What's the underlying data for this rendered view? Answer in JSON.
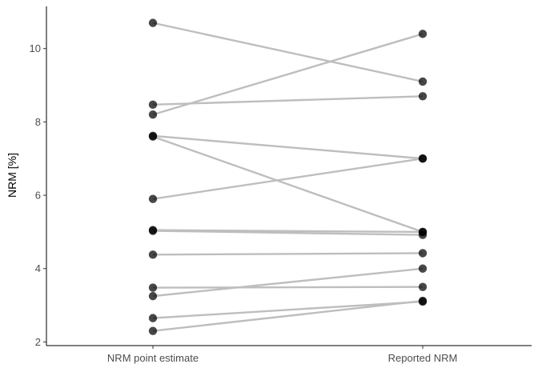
{
  "chart_data": {
    "type": "scatter",
    "subtype": "paired-dot-slope",
    "title": "",
    "xlabel": "",
    "ylabel": "NRM [%]",
    "categories": [
      "NRM point estimate",
      "Reported NRM"
    ],
    "ylim": [
      1.9,
      11.15
    ],
    "yticks": [
      2,
      4,
      6,
      8,
      10
    ],
    "grid": false,
    "legend": "none",
    "pairs": [
      {
        "estimate": 10.7,
        "reported": 9.1
      },
      {
        "estimate": 8.47,
        "reported": 8.7
      },
      {
        "estimate": 8.2,
        "reported": 10.4
      },
      {
        "estimate": 7.62,
        "reported": 7.0
      },
      {
        "estimate": 7.6,
        "reported": 5.0
      },
      {
        "estimate": 5.9,
        "reported": 7.0
      },
      {
        "estimate": 5.05,
        "reported": 5.0
      },
      {
        "estimate": 5.03,
        "reported": 4.92
      },
      {
        "estimate": 4.38,
        "reported": 4.42
      },
      {
        "estimate": 3.48,
        "reported": 3.5
      },
      {
        "estimate": 3.25,
        "reported": 4.0
      },
      {
        "estimate": 2.65,
        "reported": 3.1
      },
      {
        "estimate": 2.3,
        "reported": 3.12
      }
    ],
    "colors": {
      "line": "#bebebe",
      "point": "#000000",
      "axis": "#000000",
      "tick_text": "#4d4d4d"
    }
  }
}
